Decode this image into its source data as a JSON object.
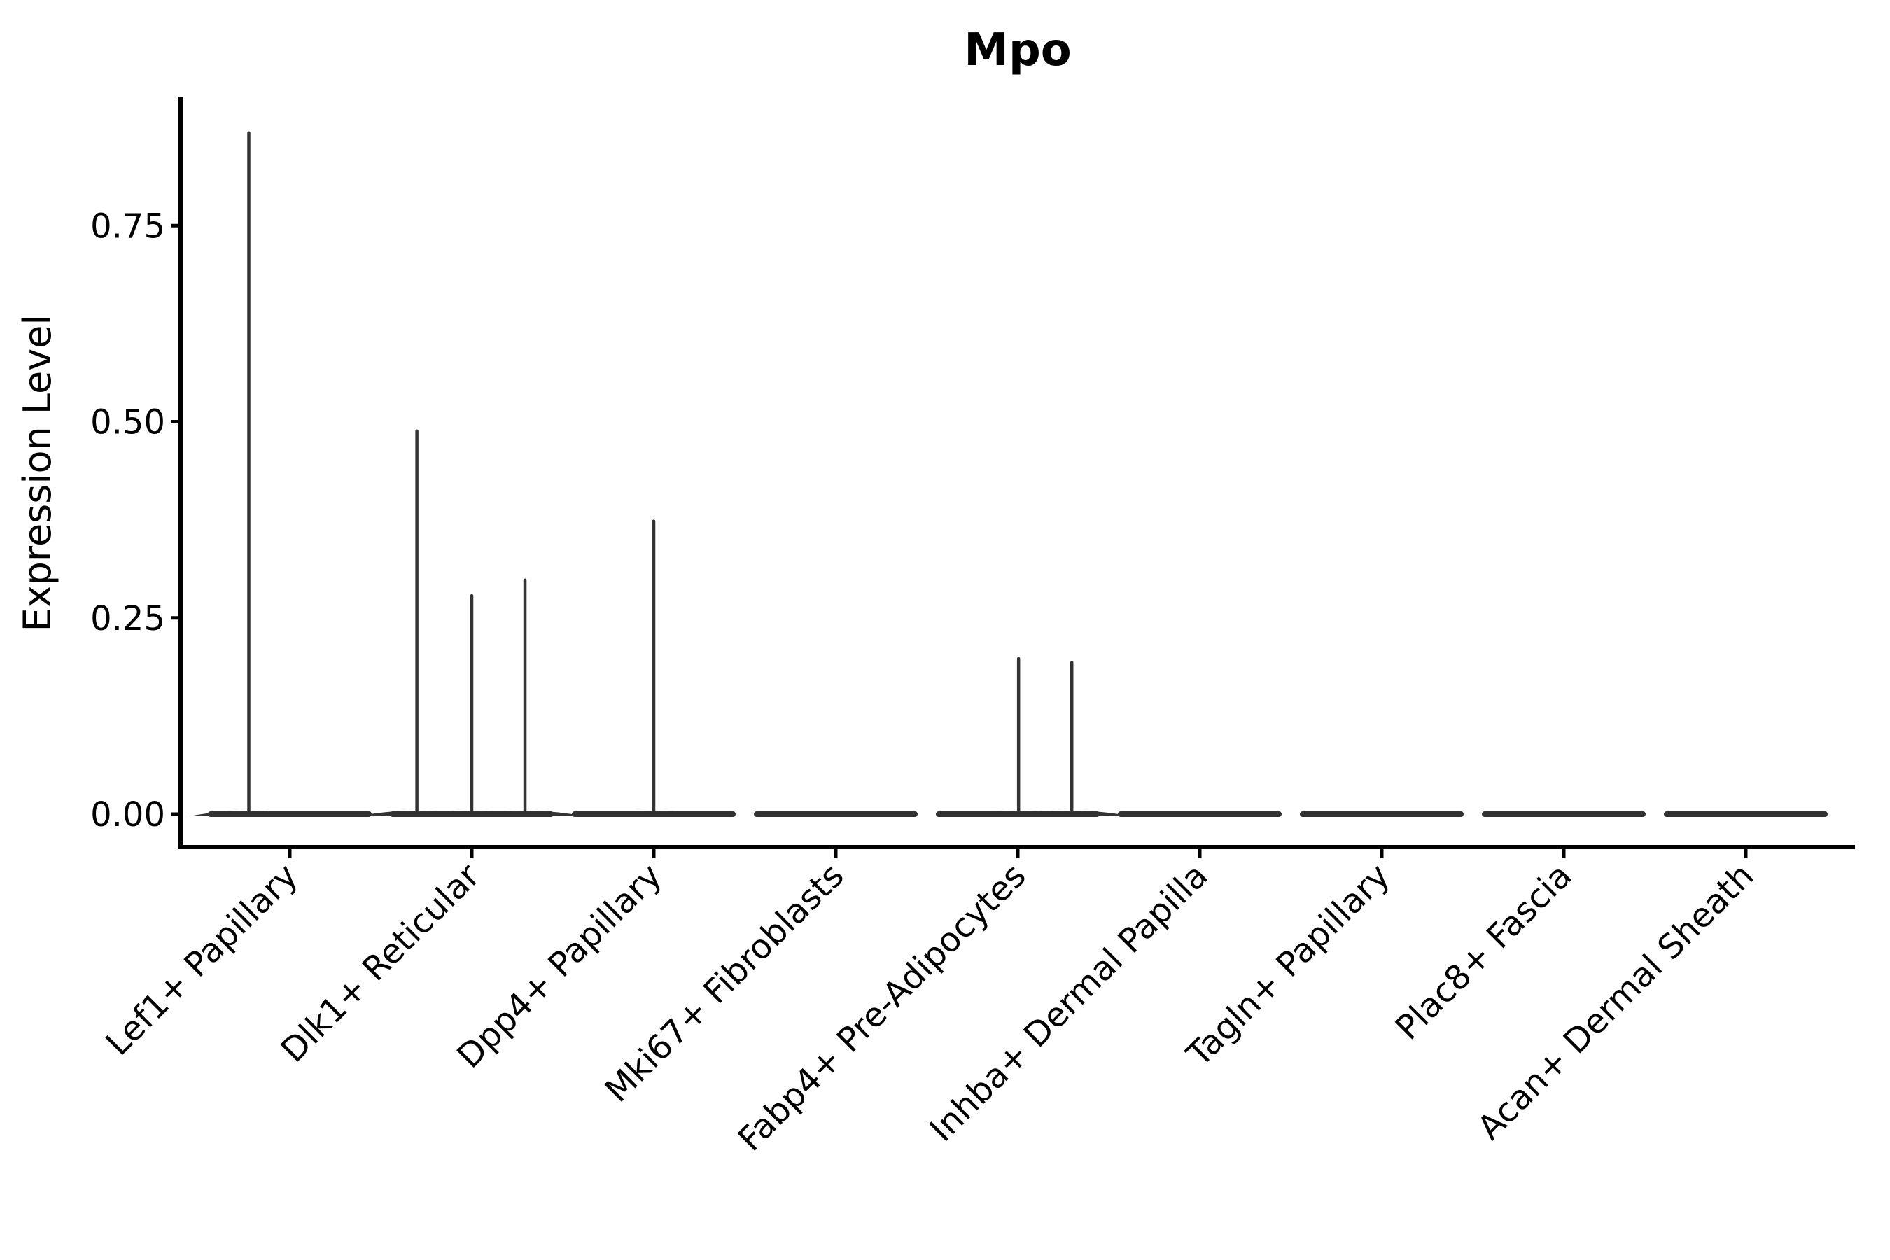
{
  "chart_data": {
    "type": "violin",
    "title": "Mpo",
    "xlabel": "",
    "ylabel": "Expression Level",
    "ytick_labels": [
      "0.00",
      "0.25",
      "0.50",
      "0.75"
    ],
    "ylim": [
      -0.04,
      0.91
    ],
    "grid": "off",
    "legend": "none",
    "categories": [
      "Lef1+ Papillary",
      "Dlk1+ Reticular",
      "Dpp4+ Papillary",
      "Mki67+ Fibroblasts",
      "Fabp4+ Pre-Adipocytes",
      "Inhba+ Dermal Papilla",
      "Tagln+ Papillary",
      "Plac8+ Fascia",
      "Acan+ Dermal Sheath"
    ],
    "series": [
      {
        "category": "Lef1+ Papillary",
        "baseline_value": 0,
        "spikes": [
          {
            "offset_frac": -0.5,
            "value": 0.87
          }
        ]
      },
      {
        "category": "Dlk1+ Reticular",
        "baseline_value": 0,
        "spikes": [
          {
            "offset_frac": -0.67,
            "value": 0.49
          },
          {
            "offset_frac": 0.0,
            "value": 0.28
          },
          {
            "offset_frac": 0.65,
            "value": 0.3
          }
        ]
      },
      {
        "category": "Dpp4+ Papillary",
        "baseline_value": 0,
        "spikes": [
          {
            "offset_frac": 0.0,
            "value": 0.375
          }
        ]
      },
      {
        "category": "Mki67+ Fibroblasts",
        "baseline_value": 0,
        "spikes": []
      },
      {
        "category": "Fabp4+ Pre-Adipocytes",
        "baseline_value": 0,
        "spikes": [
          {
            "offset_frac": 0.01,
            "value": 0.2
          },
          {
            "offset_frac": 0.66,
            "value": 0.195
          }
        ]
      },
      {
        "category": "Inhba+ Dermal Papilla",
        "baseline_value": 0,
        "spikes": []
      },
      {
        "category": "Tagln+ Papillary",
        "baseline_value": 0,
        "spikes": []
      },
      {
        "category": "Plac8+ Fascia",
        "baseline_value": 0,
        "spikes": []
      },
      {
        "category": "Acan+ Dermal Sheath",
        "baseline_value": 0,
        "spikes": []
      }
    ],
    "colors": {
      "violin": "#333333",
      "axis": "#000000",
      "text": "#000000",
      "background": "#ffffff"
    }
  }
}
